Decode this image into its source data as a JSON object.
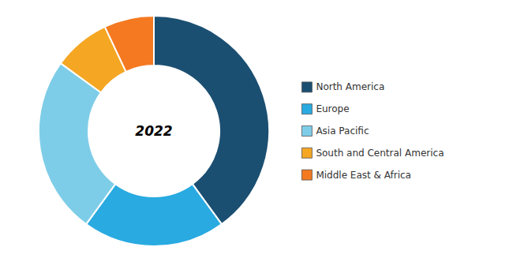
{
  "chart_data": {
    "type": "donut",
    "categories": [
      "North America",
      "Europe",
      "Asia Pacific",
      "South and Central America",
      "Middle East & Africa"
    ],
    "values": [
      40,
      20,
      25,
      8,
      7
    ],
    "colors": [
      "#1b4f72",
      "#29aae1",
      "#7ecde8",
      "#f5a623",
      "#f47920"
    ],
    "annotations": [
      "2022"
    ],
    "legend": "right",
    "data_labels": false
  }
}
